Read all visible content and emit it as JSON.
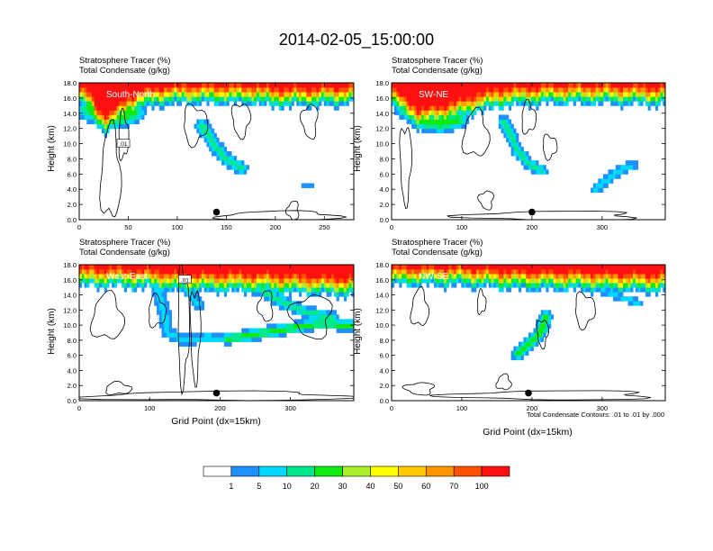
{
  "title": "2014-02-05_15:00:00",
  "panel_line1": "Stratosphere Tracer   (%)",
  "panel_line2": "Total Condensate   (g/kg)",
  "y_axis_label": "Height (km)",
  "x_axis_label": "Grid Point (dx=15km)",
  "footnote": "Total Condensate Contours: .01 to .01 by .000",
  "contour_label": ".01",
  "colors": {
    "levels": [
      "#ffffff",
      "#1e90ff",
      "#00d8ff",
      "#00e88c",
      "#10ea10",
      "#aaf02a",
      "#ffff00",
      "#ffc800",
      "#ff9600",
      "#ff5000",
      "#ff1010"
    ],
    "contour": "#000000",
    "marker": "#000000",
    "cross_label": "#ffffff"
  },
  "colorbar_labels": [
    "1",
    "5",
    "10",
    "20",
    "30",
    "40",
    "50",
    "60",
    "70",
    "100"
  ],
  "chart_data": [
    {
      "type": "heatmap",
      "name": "South-North",
      "cross_section_label": "South-North",
      "title": "Stratosphere Tracer (%) / Total Condensate (g/kg)",
      "xlabel": "",
      "ylabel": "Height (km)",
      "xlim": [
        0,
        280
      ],
      "ylim": [
        0,
        18
      ],
      "x_ticks": [
        0,
        50,
        100,
        150,
        200,
        250
      ],
      "y_ticks": [
        "0.0",
        "2.0",
        "4.0",
        "6.0",
        "8.0",
        "10.0",
        "12.0",
        "14.0",
        "16.0",
        "18.0"
      ],
      "marker": {
        "x": 140,
        "y": 1.0
      },
      "contour_label_pos": {
        "x": 45,
        "y": 10.0
      },
      "tropopause_ctrl": [
        [
          0,
          16.2
        ],
        [
          10,
          15.2
        ],
        [
          20,
          13.0
        ],
        [
          30,
          12.4
        ],
        [
          40,
          13.6
        ],
        [
          50,
          14.6
        ],
        [
          60,
          15.4
        ],
        [
          80,
          16.0
        ],
        [
          110,
          16.2
        ],
        [
          180,
          16.2
        ],
        [
          200,
          15.8
        ],
        [
          230,
          15.9
        ],
        [
          280,
          16.1
        ]
      ],
      "intrusions": [
        {
          "pts": [
            [
              10,
              14.5
            ],
            [
              30,
              13.2
            ],
            [
              45,
              13.6
            ],
            [
              55,
              14.2
            ]
          ],
          "depth": 3.0,
          "peak": 4
        },
        {
          "pts": [
            [
              125,
              12.5
            ],
            [
              132,
              11.0
            ],
            [
              140,
              9.5
            ],
            [
              150,
              8.0
            ],
            [
              165,
              6.8
            ]
          ],
          "depth": 1.6,
          "peak": 3
        },
        {
          "pts": [
            [
              230,
              4.4
            ],
            [
              236,
              4.4
            ]
          ],
          "depth": 0.6,
          "peak": 1
        }
      ],
      "contours": [
        {
          "cx": 32,
          "cy": 6,
          "rx": 10,
          "ry": 6
        },
        {
          "cx": 45,
          "cy": 11,
          "rx": 5,
          "ry": 3
        },
        {
          "cx": 118,
          "cy": 12.5,
          "rx": 12,
          "ry": 2.5
        },
        {
          "cx": 165,
          "cy": 13.2,
          "rx": 9,
          "ry": 2.2
        },
        {
          "cx": 235,
          "cy": 13,
          "rx": 8,
          "ry": 2.2
        },
        {
          "cx": 218,
          "cy": 1.2,
          "rx": 6,
          "ry": 1.2
        },
        {
          "cx": 205,
          "cy": 0.5,
          "rx": 60,
          "ry": 0.6
        }
      ]
    },
    {
      "type": "heatmap",
      "name": "SW-NE",
      "cross_section_label": "SW-NE",
      "title": "Stratosphere Tracer (%) / Total Condensate (g/kg)",
      "xlabel": "",
      "ylabel": "Height (km)",
      "xlim": [
        0,
        390
      ],
      "ylim": [
        0,
        18
      ],
      "x_ticks": [
        0,
        100,
        200,
        300
      ],
      "y_ticks": [
        "0.0",
        "2.0",
        "4.0",
        "6.0",
        "8.0",
        "10.0",
        "12.0",
        "14.0",
        "16.0",
        "18.0"
      ],
      "marker": {
        "x": 200,
        "y": 1.0
      },
      "contour_label_pos": null,
      "tropopause_ctrl": [
        [
          0,
          16.0
        ],
        [
          20,
          14.4
        ],
        [
          40,
          13.0
        ],
        [
          60,
          13.4
        ],
        [
          90,
          14.0
        ],
        [
          120,
          15.0
        ],
        [
          160,
          15.8
        ],
        [
          220,
          16.2
        ],
        [
          300,
          16.2
        ],
        [
          390,
          16.0
        ]
      ],
      "intrusions": [
        {
          "pts": [
            [
              20,
              14.6
            ],
            [
              45,
              13.0
            ],
            [
              70,
              12.6
            ],
            [
              95,
              13.2
            ]
          ],
          "depth": 2.6,
          "peak": 4
        },
        {
          "pts": [
            [
              160,
              13.0
            ],
            [
              170,
              11.0
            ],
            [
              180,
              9.0
            ],
            [
              195,
              7.4
            ],
            [
              215,
              6.4
            ]
          ],
          "depth": 1.4,
          "peak": 3
        },
        {
          "pts": [
            [
              290,
              4.0
            ],
            [
              310,
              5.5
            ],
            [
              330,
              6.8
            ],
            [
              345,
              7.2
            ]
          ],
          "depth": 1.2,
          "peak": 2
        }
      ],
      "contours": [
        {
          "cx": 120,
          "cy": 11.2,
          "rx": 18,
          "ry": 3.0
        },
        {
          "cx": 195,
          "cy": 13.4,
          "rx": 10,
          "ry": 2.0
        },
        {
          "cx": 225,
          "cy": 9.6,
          "rx": 10,
          "ry": 1.5
        },
        {
          "cx": 20,
          "cy": 7.5,
          "rx": 8,
          "ry": 5.0
        },
        {
          "cx": 135,
          "cy": 2.6,
          "rx": 10,
          "ry": 1.2
        },
        {
          "cx": 230,
          "cy": 0.5,
          "rx": 120,
          "ry": 0.6
        }
      ]
    },
    {
      "type": "heatmap",
      "name": "West-East",
      "cross_section_label": "West-East",
      "title": "Stratosphere Tracer (%) / Total Condensate (g/kg)",
      "xlabel": "Grid Point (dx=15km)",
      "ylabel": "Height (km)",
      "xlim": [
        0,
        390
      ],
      "ylim": [
        0,
        18
      ],
      "x_ticks": [
        0,
        100,
        200,
        300
      ],
      "y_ticks": [
        "0.0",
        "2.0",
        "4.0",
        "6.0",
        "8.0",
        "10.0",
        "12.0",
        "14.0",
        "16.0",
        "18.0"
      ],
      "marker": {
        "x": 195,
        "y": 1.0
      },
      "contour_label_pos": {
        "x": 150,
        "y": 16.0
      },
      "tropopause_ctrl": [
        [
          0,
          16.0
        ],
        [
          50,
          16.0
        ],
        [
          100,
          15.8
        ],
        [
          140,
          15.4
        ],
        [
          200,
          15.4
        ],
        [
          260,
          15.3
        ],
        [
          320,
          15.0
        ],
        [
          390,
          14.8
        ]
      ],
      "intrusions": [
        {
          "pts": [
            [
              110,
              15.0
            ],
            [
              120,
              12.0
            ],
            [
              125,
              9.0
            ],
            [
              150,
              8.0
            ],
            [
              180,
              8.4
            ],
            [
              210,
              8.2
            ]
          ],
          "depth": 1.4,
          "peak": 2
        },
        {
          "pts": [
            [
              210,
              8.2
            ],
            [
              250,
              8.8
            ],
            [
              300,
              9.6
            ],
            [
              340,
              10.2
            ],
            [
              390,
              10.0
            ]
          ],
          "depth": 1.6,
          "peak": 4
        },
        {
          "pts": [
            [
              260,
              14.6
            ],
            [
              290,
              13.0
            ],
            [
              320,
              11.8
            ],
            [
              360,
              11.0
            ]
          ],
          "depth": 1.6,
          "peak": 3
        },
        {
          "pts": [
            [
              150,
              15.0
            ],
            [
              160,
              14.0
            ],
            [
              170,
              12.6
            ]
          ],
          "depth": 1.2,
          "peak": 2
        }
      ],
      "contours": [
        {
          "cx": 40,
          "cy": 11,
          "rx": 22,
          "ry": 3.0
        },
        {
          "cx": 110,
          "cy": 11.8,
          "rx": 12,
          "ry": 2.0
        },
        {
          "cx": 148,
          "cy": 10,
          "rx": 8,
          "ry": 7.5
        },
        {
          "cx": 165,
          "cy": 9.0,
          "rx": 7,
          "ry": 6.0
        },
        {
          "cx": 330,
          "cy": 11.2,
          "rx": 28,
          "ry": 2.8
        },
        {
          "cx": 265,
          "cy": 12.5,
          "rx": 10,
          "ry": 2.0
        },
        {
          "cx": 200,
          "cy": 0.6,
          "rx": 180,
          "ry": 0.6
        },
        {
          "cx": 55,
          "cy": 1.6,
          "rx": 18,
          "ry": 0.8
        }
      ]
    },
    {
      "type": "heatmap",
      "name": "NW-SE",
      "cross_section_label": "NW-SE",
      "title": "Stratosphere Tracer (%) / Total Condensate (g/kg)",
      "xlabel": "Grid Point (dx=15km)",
      "ylabel": "Height (km)",
      "xlim": [
        0,
        390
      ],
      "ylim": [
        0,
        18
      ],
      "x_ticks": [
        0,
        100,
        200,
        300
      ],
      "y_ticks": [
        "0.0",
        "2.0",
        "4.0",
        "6.0",
        "8.0",
        "10.0",
        "12.0",
        "14.0",
        "16.0",
        "18.0"
      ],
      "marker": {
        "x": 195,
        "y": 1.0
      },
      "contour_label_pos": null,
      "tropopause_ctrl": [
        [
          0,
          16.2
        ],
        [
          100,
          16.2
        ],
        [
          150,
          15.8
        ],
        [
          200,
          15.7
        ],
        [
          260,
          15.6
        ],
        [
          320,
          15.4
        ],
        [
          390,
          15.3
        ]
      ],
      "intrusions": [
        {
          "pts": [
            [
              220,
              11.2
            ],
            [
              215,
              9.6
            ],
            [
              205,
              8.2
            ],
            [
              190,
              7.0
            ],
            [
              180,
              6.2
            ]
          ],
          "depth": 1.6,
          "peak": 4
        },
        {
          "pts": [
            [
              300,
              14.6
            ],
            [
              330,
              13.6
            ],
            [
              350,
              13.0
            ]
          ],
          "depth": 1.0,
          "peak": 2
        }
      ],
      "contours": [
        {
          "cx": 40,
          "cy": 12.2,
          "rx": 12,
          "ry": 2.4
        },
        {
          "cx": 128,
          "cy": 13.0,
          "rx": 6,
          "ry": 1.5
        },
        {
          "cx": 275,
          "cy": 12.0,
          "rx": 14,
          "ry": 2.2
        },
        {
          "cx": 215,
          "cy": 9.0,
          "rx": 8,
          "ry": 1.8
        },
        {
          "cx": 40,
          "cy": 1.6,
          "rx": 20,
          "ry": 0.8
        },
        {
          "cx": 230,
          "cy": 0.7,
          "rx": 140,
          "ry": 0.6
        },
        {
          "cx": 160,
          "cy": 2.4,
          "rx": 10,
          "ry": 1.0
        }
      ]
    }
  ]
}
